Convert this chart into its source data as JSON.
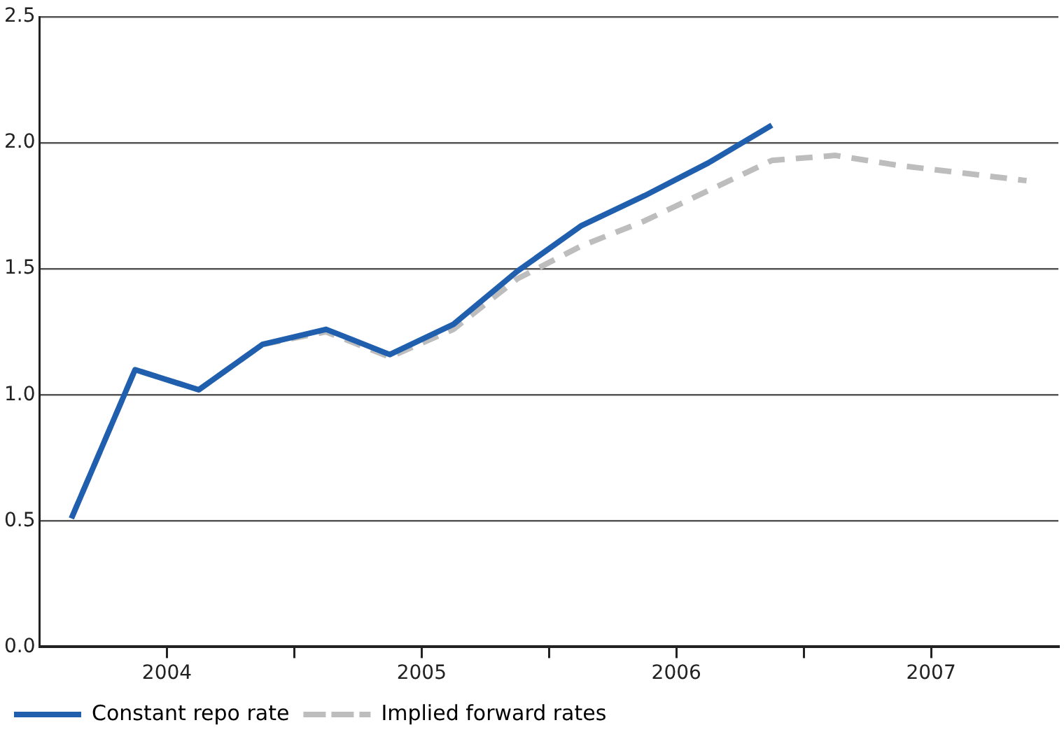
{
  "chart_data": {
    "type": "line",
    "x": [
      2004.125,
      2004.375,
      2004.625,
      2004.875,
      2005.125,
      2005.375,
      2005.625,
      2005.875,
      2006.125,
      2006.375,
      2006.625,
      2006.875,
      2007.125,
      2007.375,
      2007.625,
      2007.875
    ],
    "series": [
      {
        "name": "Constant repo rate",
        "color": "#1f5fad",
        "line_style": "solid",
        "values": [
          0.51,
          1.1,
          1.02,
          1.2,
          1.26,
          1.16,
          1.28,
          1.49,
          1.67,
          1.79,
          1.92,
          2.07,
          null,
          null,
          null,
          null
        ]
      },
      {
        "name": "Implied forward rates",
        "color": "#bdbdbd",
        "line_style": "dashed",
        "values": [
          0.51,
          1.1,
          1.02,
          1.2,
          1.25,
          1.15,
          1.26,
          1.46,
          1.59,
          1.69,
          1.81,
          1.93,
          1.95,
          1.91,
          1.88,
          1.85
        ]
      }
    ],
    "xlim": [
      2004,
      2008
    ],
    "xticks": [
      {
        "value": 2004.5,
        "label": "2004"
      },
      {
        "value": 2005,
        "label": null
      },
      {
        "value": 2005.5,
        "label": "2005"
      },
      {
        "value": 2006,
        "label": null
      },
      {
        "value": 2006.5,
        "label": "2006"
      },
      {
        "value": 2007,
        "label": null
      },
      {
        "value": 2007.5,
        "label": "2007"
      }
    ],
    "ylim": [
      0,
      2.5
    ],
    "yticks": [
      {
        "value": 0,
        "label": "0.0"
      },
      0.5,
      {
        "value": 1,
        "label": "1.0"
      },
      1.5,
      {
        "value": 2,
        "label": "2.0"
      },
      2.5
    ],
    "grid": "y",
    "legend": "bottom left",
    "marker": "none"
  }
}
